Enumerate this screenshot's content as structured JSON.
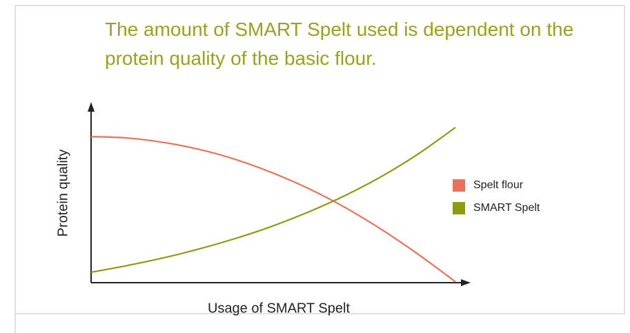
{
  "chart_data": {
    "type": "line",
    "title": "The amount of SMART Spelt used is dependent on the protein quality of the basic flour.",
    "xlabel": "Usage of SMART Spelt",
    "ylabel": "Protein quality",
    "x": [
      0,
      1,
      2,
      3,
      4,
      5,
      6,
      7,
      8,
      9,
      10
    ],
    "series": [
      {
        "name": "Spelt flour",
        "color": "#e8735a",
        "values": [
          8.15,
          8.07,
          7.82,
          7.42,
          6.85,
          6.11,
          5.22,
          4.16,
          2.93,
          1.55,
          0.05
        ]
      },
      {
        "name": "SMART Spelt",
        "color": "#8f9a10",
        "values": [
          0.58,
          0.96,
          1.39,
          1.9,
          2.49,
          3.17,
          3.97,
          4.89,
          5.96,
          7.21,
          8.66
        ]
      }
    ],
    "xlim": [
      0,
      10
    ],
    "ylim": [
      0,
      10
    ],
    "legend": "right"
  }
}
